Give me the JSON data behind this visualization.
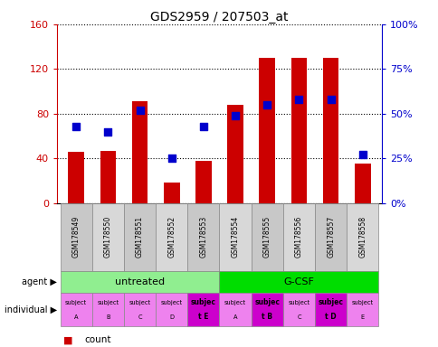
{
  "title": "GDS2959 / 207503_at",
  "samples": [
    "GSM178549",
    "GSM178550",
    "GSM178551",
    "GSM178552",
    "GSM178553",
    "GSM178554",
    "GSM178555",
    "GSM178556",
    "GSM178557",
    "GSM178558"
  ],
  "counts": [
    46,
    47,
    91,
    18,
    38,
    88,
    130,
    130,
    130,
    35
  ],
  "percentile_ranks": [
    43,
    40,
    52,
    25,
    43,
    49,
    55,
    58,
    58,
    27
  ],
  "ylim_left": [
    0,
    160
  ],
  "ylim_right": [
    0,
    100
  ],
  "yticks_left": [
    0,
    40,
    80,
    120,
    160
  ],
  "ytick_labels_left": [
    "0",
    "40",
    "80",
    "120",
    "160"
  ],
  "ytick_labels_right": [
    "0%",
    "25%",
    "50%",
    "75%",
    "100%"
  ],
  "yticks_right": [
    0,
    25,
    50,
    75,
    100
  ],
  "bar_color": "#cc0000",
  "dot_color": "#0000cc",
  "agent_groups": [
    {
      "label": "untreated",
      "start": 0,
      "end": 5,
      "color": "#90ee90"
    },
    {
      "label": "G-CSF",
      "start": 5,
      "end": 10,
      "color": "#00dd00"
    }
  ],
  "individual_labels_line1": [
    "subject",
    "subject",
    "subject",
    "subject",
    "subjec",
    "subject",
    "subjec",
    "subject",
    "subjec",
    "subject"
  ],
  "individual_labels_line2": [
    "A",
    "B",
    "C",
    "D",
    "t E",
    "A",
    "t B",
    "C",
    "t D",
    "E"
  ],
  "individual_bold": [
    false,
    false,
    false,
    false,
    true,
    false,
    true,
    false,
    true,
    false
  ],
  "individual_colors": [
    "#ee82ee",
    "#ee82ee",
    "#ee82ee",
    "#ee82ee",
    "#cc00cc",
    "#ee82ee",
    "#cc00cc",
    "#ee82ee",
    "#cc00cc",
    "#ee82ee"
  ],
  "gsm_colors_alt": [
    "#c8c8c8",
    "#d8d8d8"
  ],
  "bar_width": 0.5,
  "dot_size": 40,
  "left_label_color": "#cc0000",
  "right_label_color": "#0000cc"
}
